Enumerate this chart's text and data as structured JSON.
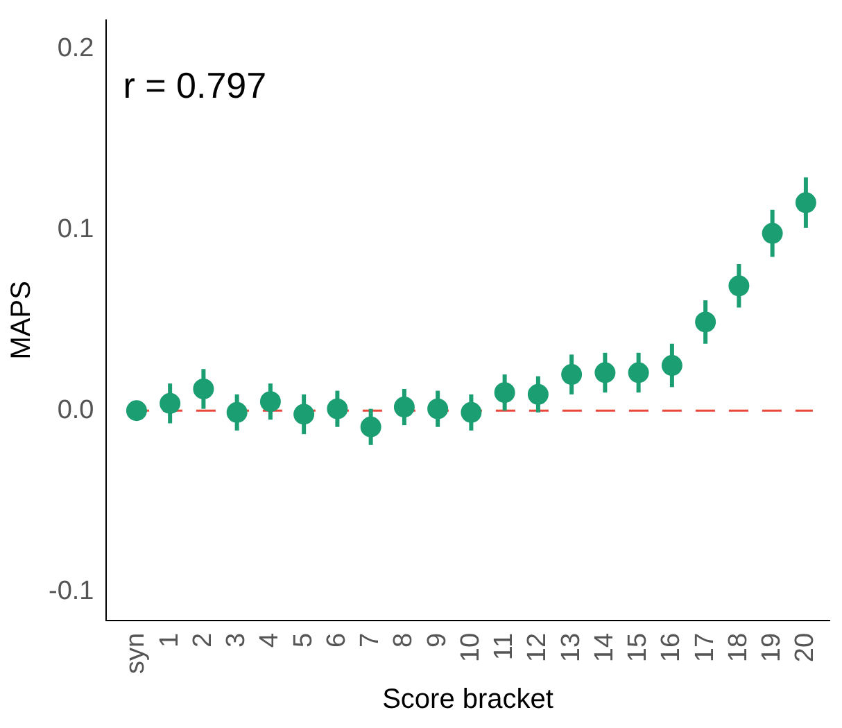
{
  "chart_data": {
    "type": "scatter",
    "xlabel": "Score bracket",
    "ylabel": "MAPS",
    "categories": [
      "syn",
      "1",
      "2",
      "3",
      "4",
      "5",
      "6",
      "7",
      "8",
      "9",
      "10",
      "11",
      "12",
      "13",
      "14",
      "15",
      "16",
      "17",
      "18",
      "19",
      "20"
    ],
    "values": [
      0.0,
      0.004,
      0.012,
      -0.001,
      0.005,
      -0.002,
      0.001,
      -0.009,
      0.002,
      0.001,
      -0.001,
      0.01,
      0.009,
      0.02,
      0.021,
      0.021,
      0.025,
      0.049,
      0.069,
      0.098,
      0.115
    ],
    "errors": [
      0.002,
      0.011,
      0.011,
      0.01,
      0.01,
      0.011,
      0.01,
      0.01,
      0.01,
      0.01,
      0.01,
      0.01,
      0.01,
      0.011,
      0.011,
      0.011,
      0.012,
      0.012,
      0.012,
      0.013,
      0.014
    ],
    "color": "#1b9e72",
    "marker": "circle",
    "grid": false,
    "legend": false,
    "ylim": [
      -0.116,
      0.216
    ],
    "yticks": [
      {
        "value": -0.1,
        "label": "-0.1"
      },
      {
        "value": 0,
        "label": "0.0"
      },
      {
        "value": 0.1,
        "label": "0.1"
      },
      {
        "value": 0.2,
        "label": "0.2"
      }
    ],
    "ref_lines": [
      {
        "axis": "y",
        "value": 0,
        "color": "#e8483a",
        "line_style": "dashed"
      }
    ],
    "annotations": [
      "r = 0.797"
    ]
  }
}
